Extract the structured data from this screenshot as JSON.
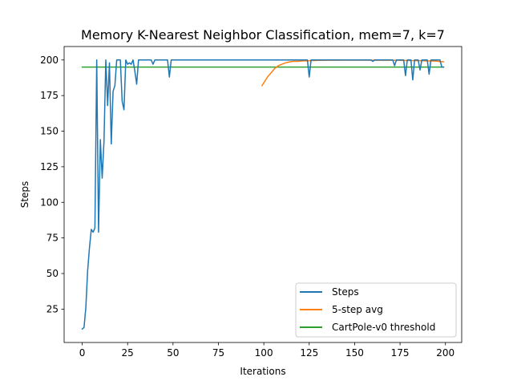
{
  "chart_data": {
    "type": "line",
    "title": "Memory K-Nearest Neighbor Classification, mem=7, k=7",
    "xlabel": "Iterations",
    "ylabel": "Steps",
    "xlim": [
      -9.95,
      208.95
    ],
    "ylim": [
      1.55,
      209.45
    ],
    "xticks": [
      0,
      25,
      50,
      75,
      100,
      125,
      150,
      175,
      200
    ],
    "yticks": [
      25,
      50,
      75,
      100,
      125,
      150,
      175,
      200
    ],
    "grid": false,
    "legend_position": "bottom-right",
    "series": [
      {
        "name": "Steps",
        "color": "#1f77b4",
        "x": [
          0,
          1,
          2,
          3,
          4,
          5,
          6,
          7,
          8,
          9,
          10,
          11,
          12,
          13,
          14,
          15,
          16,
          17,
          18,
          19,
          20,
          21,
          22,
          23,
          24,
          25,
          26,
          27,
          28,
          29,
          30,
          31,
          32,
          33,
          34,
          35,
          36,
          37,
          38,
          39,
          40,
          41,
          42,
          43,
          44,
          45,
          46,
          47,
          48,
          49,
          50,
          51,
          52,
          53,
          54,
          55,
          56,
          57,
          58,
          59,
          60,
          61,
          62,
          63,
          64,
          65,
          66,
          67,
          68,
          69,
          70,
          71,
          72,
          73,
          74,
          75,
          76,
          77,
          78,
          79,
          80,
          81,
          82,
          83,
          84,
          85,
          86,
          87,
          88,
          89,
          90,
          91,
          92,
          93,
          94,
          95,
          96,
          97,
          98,
          99,
          100,
          101,
          102,
          103,
          104,
          105,
          106,
          107,
          108,
          109,
          110,
          111,
          112,
          113,
          114,
          115,
          116,
          117,
          118,
          119,
          120,
          121,
          122,
          123,
          124,
          125,
          126,
          127,
          128,
          129,
          130,
          131,
          132,
          133,
          134,
          135,
          136,
          137,
          138,
          139,
          140,
          141,
          142,
          143,
          144,
          145,
          146,
          147,
          148,
          149,
          150,
          151,
          152,
          153,
          154,
          155,
          156,
          157,
          158,
          159,
          160,
          161,
          162,
          163,
          164,
          165,
          166,
          167,
          168,
          169,
          170,
          171,
          172,
          173,
          174,
          175,
          176,
          177,
          178,
          179,
          180,
          181,
          182,
          183,
          184,
          185,
          186,
          187,
          188,
          189,
          190,
          191,
          192,
          193,
          194,
          195,
          196,
          197,
          198,
          199
        ],
        "values": [
          11,
          12,
          26,
          52,
          68,
          81,
          79,
          82,
          200,
          79,
          144,
          117,
          143,
          200,
          168,
          198,
          141,
          178,
          182,
          200,
          200,
          200,
          171,
          165,
          200,
          197,
          198,
          197,
          200,
          192,
          183,
          200,
          200,
          200,
          200,
          200,
          200,
          200,
          200,
          197,
          200,
          200,
          200,
          200,
          200,
          200,
          200,
          200,
          188,
          200,
          200,
          200,
          200,
          200,
          200,
          200,
          200,
          200,
          200,
          200,
          200,
          200,
          200,
          200,
          200,
          200,
          200,
          200,
          200,
          200,
          200,
          200,
          200,
          200,
          200,
          200,
          200,
          200,
          200,
          200,
          200,
          200,
          200,
          200,
          200,
          200,
          200,
          200,
          200,
          200,
          200,
          200,
          200,
          200,
          200,
          200,
          200,
          200,
          200,
          200,
          200,
          200,
          200,
          200,
          200,
          200,
          200,
          200,
          200,
          200,
          200,
          200,
          200,
          200,
          200,
          200,
          200,
          200,
          200,
          200,
          200,
          200,
          200,
          200,
          200,
          188,
          200,
          200,
          200,
          200,
          200,
          200,
          200,
          200,
          200,
          200,
          200,
          200,
          200,
          200,
          200,
          200,
          200,
          200,
          200,
          200,
          200,
          200,
          200,
          200,
          200,
          200,
          200,
          200,
          200,
          200,
          200,
          200,
          200,
          200,
          199,
          200,
          200,
          200,
          200,
          200,
          200,
          200,
          200,
          200,
          200,
          200,
          196,
          200,
          200,
          200,
          200,
          200,
          189,
          200,
          200,
          200,
          186,
          200,
          200,
          200,
          193,
          200,
          200,
          200,
          200,
          190,
          200,
          200,
          200,
          200,
          200,
          200,
          195,
          195
        ]
      },
      {
        "name": "5-step avg",
        "color": "#ff7f0e",
        "x": [
          99,
          100,
          101,
          102,
          103,
          104,
          105,
          106,
          107,
          108,
          109,
          110,
          111,
          112,
          113,
          114,
          115,
          116,
          117,
          118,
          119,
          120,
          121,
          122,
          123,
          124,
          125,
          126,
          127,
          128,
          129,
          130,
          135,
          140,
          145,
          150,
          155,
          160,
          165,
          170,
          175,
          180,
          185,
          190,
          195,
          196,
          197,
          198,
          199
        ],
        "values": [
          182,
          184,
          186,
          188,
          189.5,
          191,
          192.5,
          194,
          195,
          196,
          196.5,
          197,
          197.5,
          198,
          198.3,
          198.6,
          198.8,
          199,
          199,
          199,
          199,
          199.2,
          199.3,
          199.4,
          199.4,
          199.4,
          199.5,
          199.5,
          199.6,
          199.6,
          199.7,
          199.7,
          199.8,
          199.8,
          199.9,
          199.9,
          199.9,
          199.8,
          199.8,
          199.8,
          199.7,
          199.6,
          199.5,
          199.4,
          199.2,
          199,
          198.9,
          198.8,
          198.7
        ]
      },
      {
        "name": "CartPole-v0 threshold",
        "color": "#2ca02c",
        "x": [
          0,
          199
        ],
        "values": [
          195,
          195
        ]
      }
    ]
  }
}
